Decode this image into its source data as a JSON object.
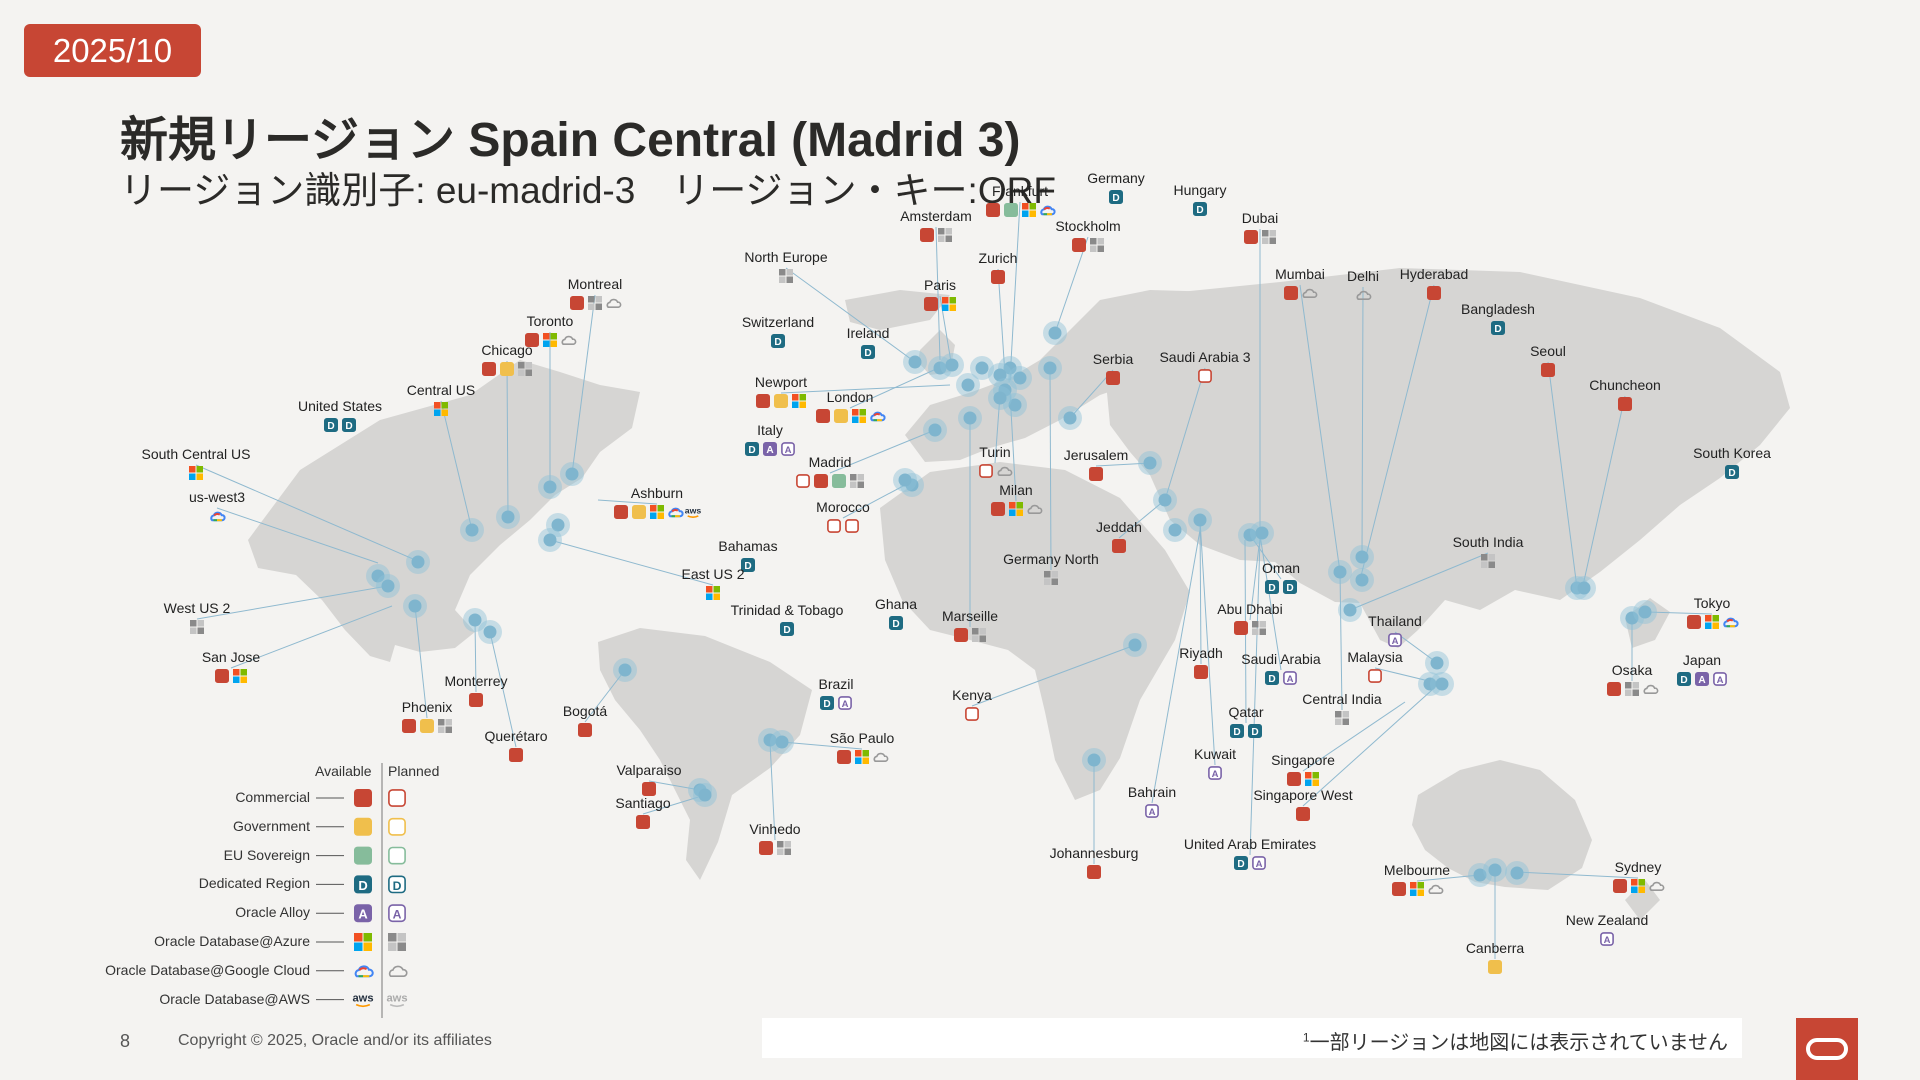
{
  "date": "2025/10",
  "title": "新規リージョン Spain Central (Madrid 3)",
  "subtitle": "リージョン識別子: eu-madrid-3　リージョン・キー:ORF",
  "legend": {
    "available_label": "Available",
    "planned_label": "Planned",
    "items": [
      {
        "label": "Commercial",
        "type": "commercial"
      },
      {
        "label": "Government",
        "type": "government"
      },
      {
        "label": "EU Sovereign",
        "type": "eu"
      },
      {
        "label": "Dedicated Region",
        "type": "dedicated"
      },
      {
        "label": "Oracle Alloy",
        "type": "alloy"
      },
      {
        "label": "Oracle Database@Azure",
        "type": "azure"
      },
      {
        "label": "Oracle Database@Google Cloud",
        "type": "google"
      },
      {
        "label": "Oracle Database@AWS",
        "type": "aws"
      }
    ]
  },
  "colors": {
    "commercial": "#c74634",
    "government": "#f0bf4c",
    "eu": "#86bc9b",
    "dedicated": "#1e6b82",
    "alloy": "#7a63a8",
    "land": "#d6d5d3",
    "marker": "#8fc0d6",
    "accent": "#c74634"
  },
  "regions": [
    {
      "name": "Frankfurt",
      "icons": [
        "c",
        "e",
        "az",
        "g"
      ]
    },
    {
      "name": "Germany",
      "icons": [
        "d"
      ]
    },
    {
      "name": "Hungary",
      "icons": [
        "d"
      ]
    },
    {
      "name": "Amsterdam",
      "icons": [
        "c",
        "azp"
      ]
    },
    {
      "name": "Stockholm",
      "icons": [
        "c",
        "azp"
      ]
    },
    {
      "name": "Dubai",
      "icons": [
        "c",
        "azp"
      ]
    },
    {
      "name": "North Europe",
      "icons": [
        "azp"
      ]
    },
    {
      "name": "Zurich",
      "icons": [
        "c"
      ]
    },
    {
      "name": "Montreal",
      "icons": [
        "c",
        "azp",
        "gp"
      ]
    },
    {
      "name": "Paris",
      "icons": [
        "c",
        "az"
      ]
    },
    {
      "name": "Mumbai",
      "icons": [
        "c",
        "gp"
      ]
    },
    {
      "name": "Delhi",
      "icons": [
        "gp"
      ]
    },
    {
      "name": "Hyderabad",
      "icons": [
        "c"
      ]
    },
    {
      "name": "Toronto",
      "icons": [
        "c",
        "az",
        "gp"
      ]
    },
    {
      "name": "Bangladesh",
      "icons": [
        "d"
      ]
    },
    {
      "name": "Switzerland",
      "icons": [
        "d"
      ]
    },
    {
      "name": "Ireland",
      "icons": [
        "d"
      ]
    },
    {
      "name": "Chicago",
      "icons": [
        "c",
        "gv",
        "azp"
      ]
    },
    {
      "name": "Seoul",
      "icons": [
        "c"
      ]
    },
    {
      "name": "Serbia",
      "icons": [
        "c"
      ]
    },
    {
      "name": "Saudi Arabia 3",
      "icons": [
        "cp"
      ]
    },
    {
      "name": "Newport",
      "icons": [
        "c",
        "gv",
        "az"
      ]
    },
    {
      "name": "Central US",
      "icons": [
        "az"
      ]
    },
    {
      "name": "Chuncheon",
      "icons": [
        "c"
      ]
    },
    {
      "name": "London",
      "icons": [
        "c",
        "gv",
        "az",
        "g"
      ]
    },
    {
      "name": "United States",
      "icons": [
        "d",
        "d"
      ]
    },
    {
      "name": "Italy",
      "icons": [
        "d",
        "a",
        "ap"
      ]
    },
    {
      "name": "South Korea",
      "icons": [
        "d"
      ]
    },
    {
      "name": "Turin",
      "icons": [
        "cp",
        "gp"
      ]
    },
    {
      "name": "Jerusalem",
      "icons": [
        "c"
      ]
    },
    {
      "name": "Madrid",
      "icons": [
        "cp",
        "c",
        "e",
        "azp"
      ]
    },
    {
      "name": "South Central US",
      "icons": [
        "az"
      ]
    },
    {
      "name": "Milan",
      "icons": [
        "c",
        "az",
        "gp"
      ]
    },
    {
      "name": "us-west3",
      "icons": [
        "g"
      ]
    },
    {
      "name": "Ashburn",
      "icons": [
        "c",
        "gv",
        "az",
        "g",
        "aws"
      ]
    },
    {
      "name": "Morocco",
      "icons": [
        "cp",
        "cp"
      ]
    },
    {
      "name": "Jeddah",
      "icons": [
        "c"
      ]
    },
    {
      "name": "Bahamas",
      "icons": [
        "d"
      ]
    },
    {
      "name": "South India",
      "icons": [
        "azp"
      ]
    },
    {
      "name": "Germany North",
      "icons": [
        "azp"
      ]
    },
    {
      "name": "Oman",
      "icons": [
        "d",
        "d"
      ]
    },
    {
      "name": "East US 2",
      "icons": [
        "az"
      ]
    },
    {
      "name": "Tokyo",
      "icons": [
        "c",
        "az",
        "g"
      ]
    },
    {
      "name": "Ghana",
      "icons": [
        "d"
      ]
    },
    {
      "name": "Trinidad & Tobago",
      "icons": [
        "d"
      ]
    },
    {
      "name": "West US 2",
      "icons": [
        "azp"
      ]
    },
    {
      "name": "Abu Dhabi",
      "icons": [
        "c",
        "azp"
      ]
    },
    {
      "name": "Marseille",
      "icons": [
        "c",
        "azp"
      ]
    },
    {
      "name": "Thailand",
      "icons": [
        "ap"
      ]
    },
    {
      "name": "Riyadh",
      "icons": [
        "c"
      ]
    },
    {
      "name": "San Jose",
      "icons": [
        "c",
        "az"
      ]
    },
    {
      "name": "Saudi Arabia",
      "icons": [
        "d",
        "ap"
      ]
    },
    {
      "name": "Malaysia",
      "icons": [
        "cp"
      ]
    },
    {
      "name": "Japan",
      "icons": [
        "d",
        "a",
        "ap"
      ]
    },
    {
      "name": "Osaka",
      "icons": [
        "c",
        "azp",
        "gp"
      ]
    },
    {
      "name": "Monterrey",
      "icons": [
        "c"
      ]
    },
    {
      "name": "Brazil",
      "icons": [
        "d",
        "ap"
      ]
    },
    {
      "name": "Kenya",
      "icons": [
        "cp"
      ]
    },
    {
      "name": "Central India",
      "icons": [
        "azp"
      ]
    },
    {
      "name": "Phoenix",
      "icons": [
        "c",
        "gv",
        "azp"
      ]
    },
    {
      "name": "Bogotá",
      "icons": [
        "c"
      ]
    },
    {
      "name": "Qatar",
      "icons": [
        "d",
        "d"
      ]
    },
    {
      "name": "São Paulo",
      "icons": [
        "c",
        "az",
        "gp"
      ]
    },
    {
      "name": "Querétaro",
      "icons": [
        "c"
      ]
    },
    {
      "name": "Kuwait",
      "icons": [
        "ap"
      ]
    },
    {
      "name": "Singapore",
      "icons": [
        "c",
        "az"
      ]
    },
    {
      "name": "Valparaiso",
      "icons": [
        "c"
      ]
    },
    {
      "name": "Bahrain",
      "icons": [
        "ap"
      ]
    },
    {
      "name": "Singapore West",
      "icons": [
        "c"
      ]
    },
    {
      "name": "Santiago",
      "icons": [
        "c"
      ]
    },
    {
      "name": "Vinhedo",
      "icons": [
        "c",
        "azp"
      ]
    },
    {
      "name": "United Arab Emirates",
      "icons": [
        "d",
        "ap"
      ]
    },
    {
      "name": "Johannesburg",
      "icons": [
        "c"
      ]
    },
    {
      "name": "Melbourne",
      "icons": [
        "c",
        "az",
        "gp"
      ]
    },
    {
      "name": "Sydney",
      "icons": [
        "c",
        "az",
        "gp"
      ]
    },
    {
      "name": "New Zealand",
      "icons": [
        "ap"
      ]
    },
    {
      "name": "Canberra",
      "icons": [
        "gv"
      ]
    }
  ],
  "footer": {
    "page": "8",
    "copyright": "Copyright © 2025, Oracle and/or its affiliates",
    "footnote_mark": "1",
    "footnote": "一部リージョンは地図には表示されていません"
  }
}
